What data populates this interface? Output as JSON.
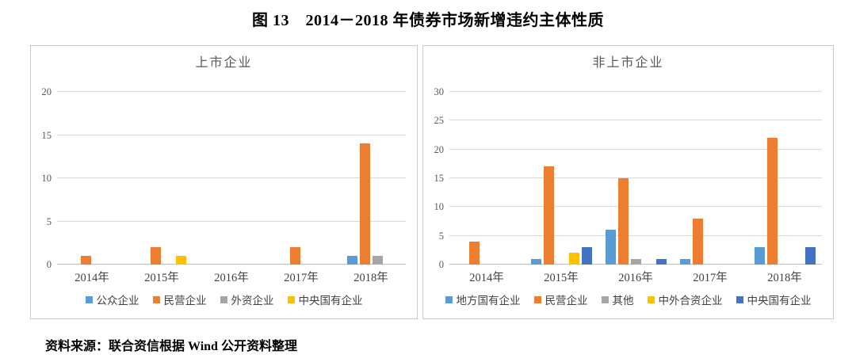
{
  "page_title": "图 13　2014－2018 年债券市场新增违约主体性质",
  "source_note": "资料来源：联合资信根据 Wind 公开资料整理",
  "colors": {
    "light_blue": "#5B9BD5",
    "orange": "#ED7D31",
    "gray": "#A5A5A5",
    "yellow": "#FFC000",
    "dark_blue": "#4472C4",
    "gridline": "#D9D9D9",
    "axis_text": "#595959",
    "chart_title_text": "#595959"
  },
  "chart_data": [
    {
      "type": "bar",
      "title": "上市企业",
      "categories": [
        "2014年",
        "2015年",
        "2016年",
        "2017年",
        "2018年"
      ],
      "series": [
        {
          "name": "公众企业",
          "color": "#5B9BD5",
          "values": [
            0,
            0,
            0,
            0,
            1
          ]
        },
        {
          "name": "民营企业",
          "color": "#ED7D31",
          "values": [
            1,
            2,
            0,
            2,
            14
          ]
        },
        {
          "name": "外资企业",
          "color": "#A5A5A5",
          "values": [
            0,
            0,
            0,
            0,
            1
          ]
        },
        {
          "name": "中央国有企业",
          "color": "#FFC000",
          "values": [
            0,
            1,
            0,
            0,
            0
          ]
        }
      ],
      "xlabel": "",
      "ylabel": "",
      "ylim": [
        0,
        20
      ],
      "yticks": [
        0,
        5,
        10,
        15,
        20
      ],
      "grid": true,
      "legend_position": "bottom"
    },
    {
      "type": "bar",
      "title": "非上市企业",
      "categories": [
        "2014年",
        "2015年",
        "2016年",
        "2017年",
        "2018年"
      ],
      "series": [
        {
          "name": "地方国有企业",
          "color": "#5B9BD5",
          "values": [
            0,
            1,
            6,
            1,
            3
          ]
        },
        {
          "name": "民营企业",
          "color": "#ED7D31",
          "values": [
            4,
            17,
            15,
            8,
            22
          ]
        },
        {
          "name": "其他",
          "color": "#A5A5A5",
          "values": [
            0,
            0,
            1,
            0,
            0
          ]
        },
        {
          "name": "中外合资企业",
          "color": "#FFC000",
          "values": [
            0,
            2,
            0,
            0,
            0
          ]
        },
        {
          "name": "中央国有企业",
          "color": "#4472C4",
          "values": [
            0,
            3,
            1,
            0,
            3
          ]
        }
      ],
      "xlabel": "",
      "ylabel": "",
      "ylim": [
        0,
        30
      ],
      "yticks": [
        0,
        5,
        10,
        15,
        20,
        25,
        30
      ],
      "grid": true,
      "legend_position": "bottom"
    }
  ]
}
